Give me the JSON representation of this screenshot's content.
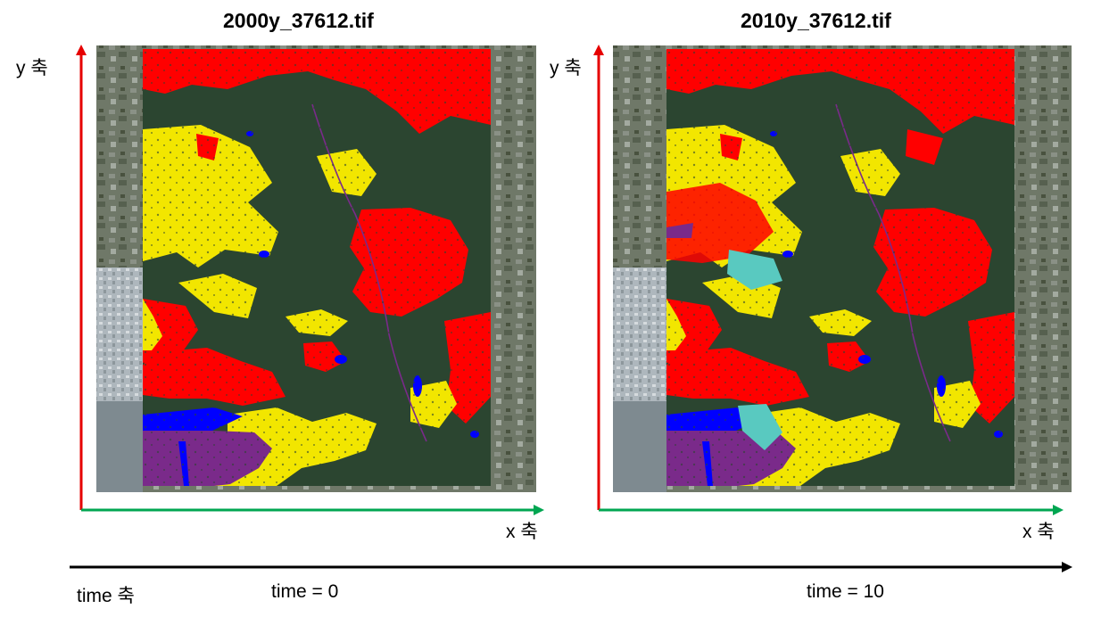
{
  "panels": [
    {
      "title": "2000y_37612.tif",
      "y_axis_label": "y 축",
      "x_axis_label": "x 축",
      "time_label": "time = 0"
    },
    {
      "title": "2010y_37612.tif",
      "y_axis_label": "y 축",
      "x_axis_label": "x 축",
      "time_label": "time = 10"
    }
  ],
  "time_axis_label": "time 축",
  "colors": {
    "y_axis": "#e60000",
    "x_axis": "#00a651",
    "time_axis": "#000000",
    "urban": "#ff0000",
    "agriculture": "#f2e600",
    "forest": "#2b4530",
    "water": "#0000ff",
    "wetland": "#7a2a8a",
    "grassland": "#59c9c0"
  }
}
